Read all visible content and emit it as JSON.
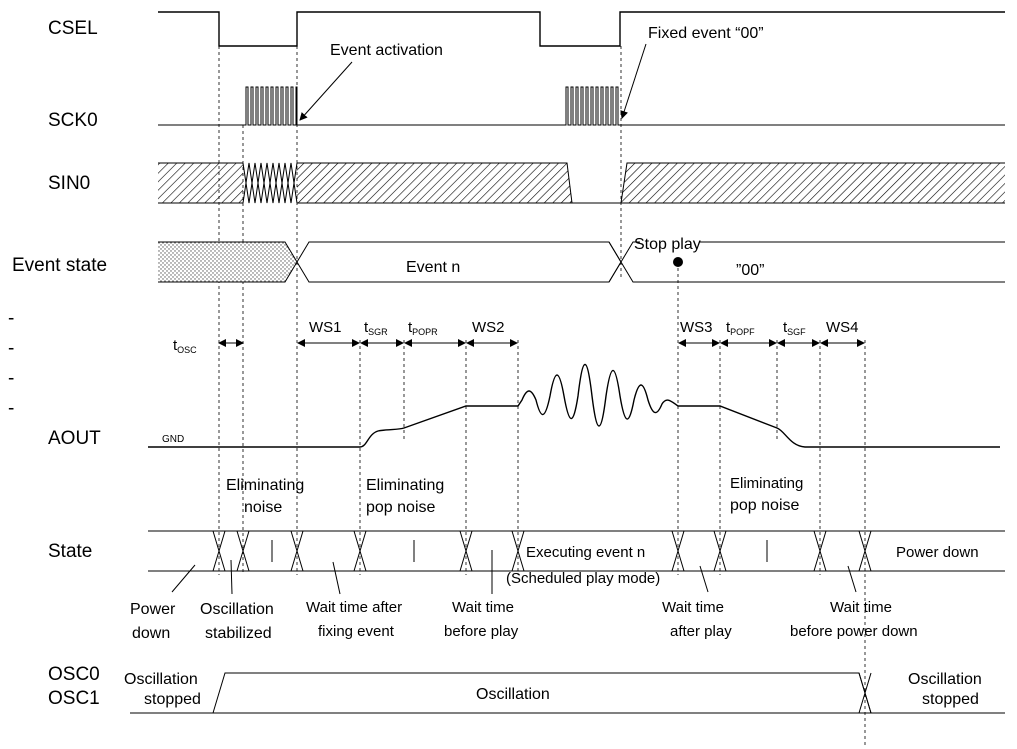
{
  "signals": {
    "csel": "CSEL",
    "sck0": "SCK0",
    "sin0": "SIN0",
    "event_state": "Event state",
    "aout": "AOUT",
    "state": "State",
    "osc0": "OSC0",
    "osc1": "OSC1"
  },
  "left_dashes": [
    "-",
    "-",
    "-",
    "-"
  ],
  "annotations": {
    "event_activation": "Event activation",
    "fixed_event": "Fixed event “00”",
    "stop_play": "Stop play",
    "event_n": "Event n",
    "event_00": "”00”",
    "gnd": "GND"
  },
  "timings": {
    "tosc": {
      "t": "t",
      "sub": "OSC"
    },
    "ws1": "WS1",
    "tsgr": {
      "t": "t",
      "sub": "SGR"
    },
    "tpopr": {
      "t": "t",
      "sub": "POPR"
    },
    "ws2": "WS2",
    "ws3": "WS3",
    "tpopf": {
      "t": "t",
      "sub": "POPF"
    },
    "tsgf": {
      "t": "t",
      "sub": "SGF"
    },
    "ws4": "WS4"
  },
  "states": {
    "elim_noise_1": "Eliminating",
    "elim_noise_2": "noise",
    "elim_pop_1": "Eliminating",
    "elim_pop_2": "pop noise",
    "elim_pop_b1": "Eliminating",
    "elim_pop_b2": "pop noise",
    "executing_1": "Executing event n",
    "executing_2": "(Scheduled play mode)",
    "power_down_right": "Power down",
    "power_1": "Power",
    "power_2": "down",
    "osc_stab_1": "Oscillation",
    "osc_stab_2": "stabilized",
    "wait_fix_1": "Wait time after",
    "wait_fix_2": "fixing event",
    "wait_before_play_1": "Wait time",
    "wait_before_play_2": "before play",
    "wait_after_play_1": "Wait time",
    "wait_after_play_2": "after play",
    "wait_power_1": "Wait time",
    "wait_power_2": "before power down"
  },
  "oscillation": {
    "stopped_l1": "Oscillation",
    "stopped_l2": "stopped",
    "running": "Oscillation",
    "stopped_r1": "Oscillation",
    "stopped_r2": "stopped"
  }
}
